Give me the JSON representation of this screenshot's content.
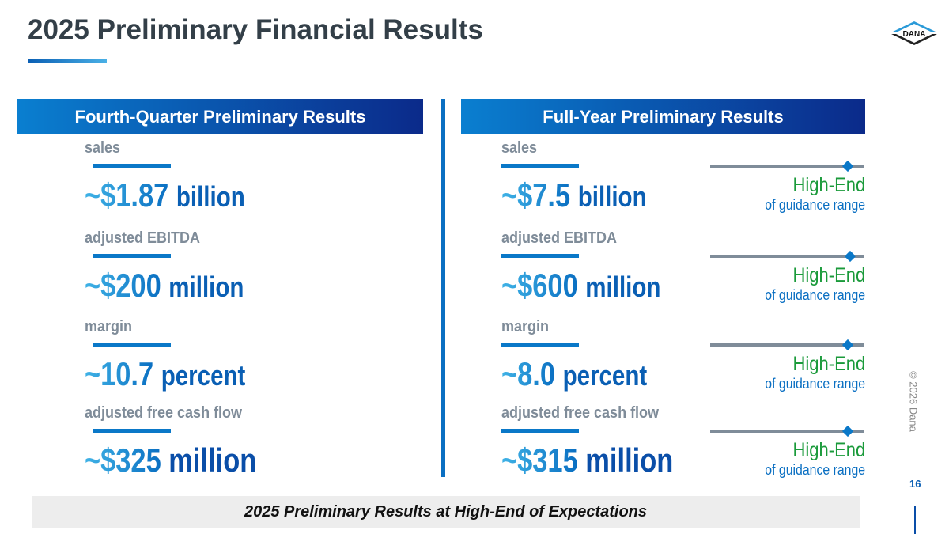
{
  "title": "2025 Preliminary Financial Results",
  "logo_text": "DANA",
  "columns": [
    {
      "header": "Fourth-Quarter Preliminary Results",
      "metrics": [
        {
          "label": "sales",
          "value": "~$1.87",
          "unit": "billion"
        },
        {
          "label": "adjusted EBITDA",
          "value": "~$200",
          "unit": "million"
        },
        {
          "label": "margin",
          "value": "~10.7",
          "unit": "percent"
        },
        {
          "label": "adjusted free cash flow",
          "value": "~$325",
          "unit": "million"
        }
      ]
    },
    {
      "header": "Full-Year Preliminary Results",
      "metrics": [
        {
          "label": "sales",
          "value": "~$7.5",
          "unit": "billion"
        },
        {
          "label": "adjusted EBITDA",
          "value": "~$600",
          "unit": "million"
        },
        {
          "label": "margin",
          "value": "~8.0",
          "unit": "percent"
        },
        {
          "label": "adjusted free cash flow",
          "value": "~$315",
          "unit": "million"
        }
      ]
    }
  ],
  "guidance": [
    {
      "title": "High-End",
      "subtitle": "of guidance range",
      "position": 0.89
    },
    {
      "title": "High-End",
      "subtitle": "of guidance range",
      "position": 0.91
    },
    {
      "title": "High-End",
      "subtitle": "of guidance range",
      "position": 0.89
    },
    {
      "title": "High-End",
      "subtitle": "of guidance range",
      "position": 0.89
    }
  ],
  "footer": "2025 Preliminary Results at High-End of Expectations",
  "page_number": "16",
  "copyright": "© 2026 Dana"
}
